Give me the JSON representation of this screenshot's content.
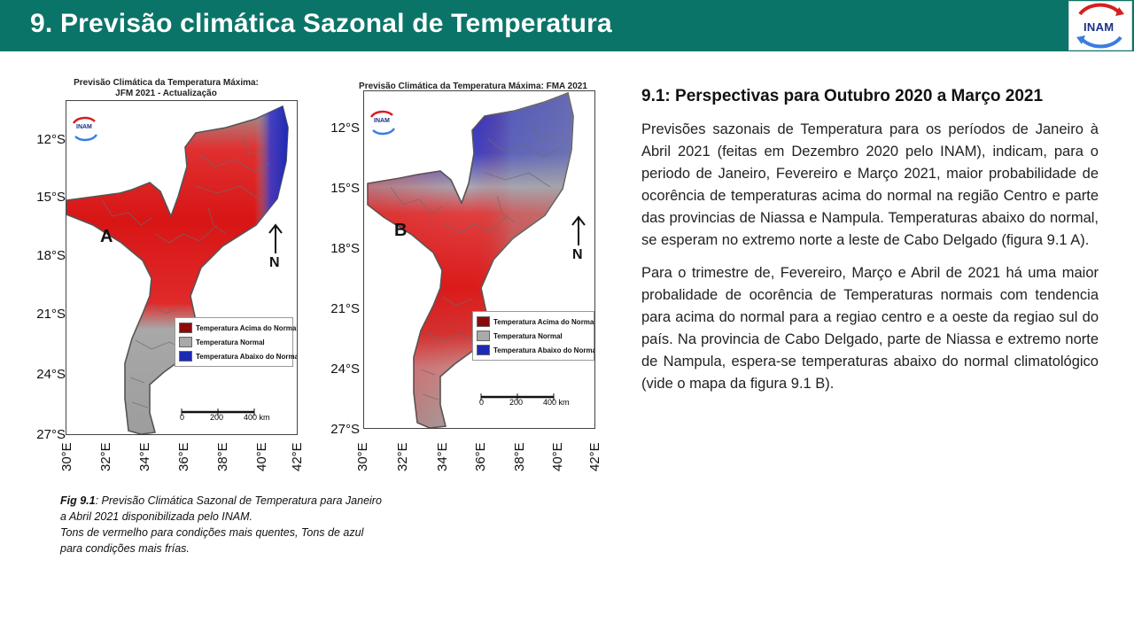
{
  "header": {
    "title": "9. Previsão climática Sazonal de Temperatura",
    "logo_text": "INAM",
    "background_color": "#0b7468",
    "logo_icon": "inam-logo-icon"
  },
  "maps": {
    "a": {
      "title_line1": "Previsão Climática da Temperatura Máxima:",
      "title_line2": "JFM 2021 - Actualização",
      "letter": "A",
      "north": "N",
      "logo_text": "INAM",
      "lat_labels": [
        "12°S",
        "15°S",
        "18°S",
        "21°S",
        "24°S",
        "27°S"
      ],
      "lon_labels": [
        "30°E",
        "32°E",
        "34°E",
        "36°E",
        "38°E",
        "40°E",
        "42°E"
      ],
      "scale": [
        "0",
        "200",
        "400 km"
      ]
    },
    "b": {
      "title_line1": "Previsão Climática da Temperatura Máxima: FMA 2021",
      "letter": "B",
      "north": "N",
      "logo_text": "INAM",
      "lat_labels": [
        "12°S",
        "15°S",
        "18°S",
        "21°S",
        "24°S",
        "27°S"
      ],
      "lon_labels": [
        "30°E",
        "32°E",
        "34°E",
        "36°E",
        "38°E",
        "40°E",
        "42°E"
      ],
      "scale": [
        "0",
        "200",
        "400 km"
      ]
    },
    "legend": [
      {
        "label": "Temperatura Acima do Normal",
        "color": "#8b0a0a"
      },
      {
        "label": "Temperatura Normal",
        "color": "#a9a9a9"
      },
      {
        "label": "Temperatura Abaixo do Normal",
        "color": "#1c2bb3"
      }
    ]
  },
  "caption": {
    "prefix": "Fig 9.1",
    "line1": ": Previsão Climática Sazonal de Temperatura para Janeiro a Abril 2021 disponibilizada pelo INAM.",
    "line2": " Tons de vermelho para condições mais quentes, Tons de azul para condições mais frías."
  },
  "content": {
    "heading": "9.1: Perspectivas para  Outubro 2020 a Março 2021",
    "paragraph1": "Previsões sazonais de Temperatura para os períodos de Janeiro à Abril 2021 (feitas em Dezembro 2020 pelo INAM), indicam, para o periodo de Janeiro, Fevereiro e Março 2021, maior probabilidade de ocorência de temperaturas acima do normal na região Centro e parte das provincias de Niassa e Nampula. Temperaturas abaixo do normal, se esperam no extremo norte a leste de Cabo Delgado (figura 9.1 A).",
    "paragraph2": "Para o trimestre de, Fevereiro, Março e Abril de 2021 há uma maior probalidade de ocorência de Temperaturas normais com tendencia para acima do normal para a regiao centro e a oeste da regiao sul do país. Na provincia de Cabo Delgado, parte de Niassa e extremo norte de Nampula, espera-se temperaturas abaixo do normal climatológico (vide o mapa da figura 9.1 B)."
  }
}
